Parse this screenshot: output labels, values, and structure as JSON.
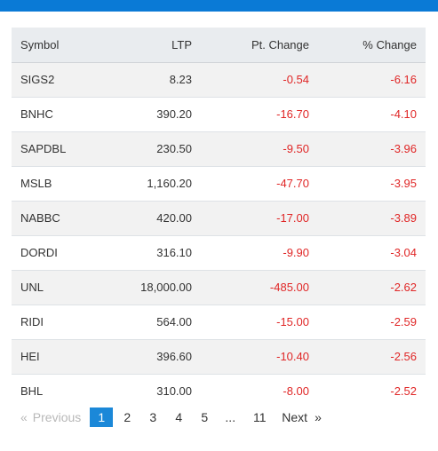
{
  "colors": {
    "top_bar": "#0a7ad6",
    "negative": "#e02626",
    "active_page": "#1b88d8"
  },
  "table": {
    "headers": [
      "Symbol",
      "LTP",
      "Pt. Change",
      "% Change"
    ],
    "rows": [
      {
        "symbol": "SIGS2",
        "ltp": "8.23",
        "pt_change": "-0.54",
        "pct_change": "-6.16"
      },
      {
        "symbol": "BNHC",
        "ltp": "390.20",
        "pt_change": "-16.70",
        "pct_change": "-4.10"
      },
      {
        "symbol": "SAPDBL",
        "ltp": "230.50",
        "pt_change": "-9.50",
        "pct_change": "-3.96"
      },
      {
        "symbol": "MSLB",
        "ltp": "1,160.20",
        "pt_change": "-47.70",
        "pct_change": "-3.95"
      },
      {
        "symbol": "NABBC",
        "ltp": "420.00",
        "pt_change": "-17.00",
        "pct_change": "-3.89"
      },
      {
        "symbol": "DORDI",
        "ltp": "316.10",
        "pt_change": "-9.90",
        "pct_change": "-3.04"
      },
      {
        "symbol": "UNL",
        "ltp": "18,000.00",
        "pt_change": "-485.00",
        "pct_change": "-2.62"
      },
      {
        "symbol": "RIDI",
        "ltp": "564.00",
        "pt_change": "-15.00",
        "pct_change": "-2.59"
      },
      {
        "symbol": "HEI",
        "ltp": "396.60",
        "pt_change": "-10.40",
        "pct_change": "-2.56"
      },
      {
        "symbol": "BHL",
        "ltp": "310.00",
        "pt_change": "-8.00",
        "pct_change": "-2.52"
      }
    ]
  },
  "pagination": {
    "prev_chevron": "«",
    "prev_label": "Previous",
    "pages": [
      "1",
      "2",
      "3",
      "4",
      "5"
    ],
    "active_page": "1",
    "ellipsis": "...",
    "last_page": "11",
    "next_label": "Next",
    "next_chevron": "»"
  }
}
